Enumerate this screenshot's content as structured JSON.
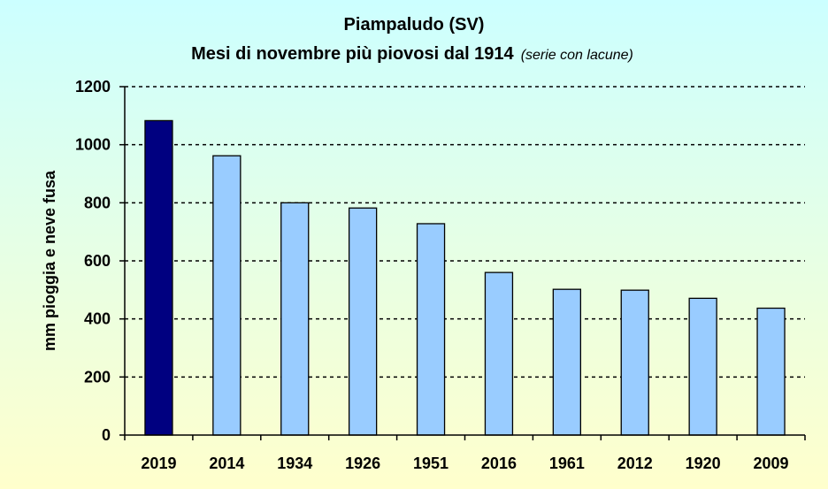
{
  "chart_data": {
    "type": "bar",
    "title": "Piampaludo (SV)",
    "subtitle": "Mesi di novembre più piovosi dal 1914",
    "subtitle_note": "(serie con lacune)",
    "xlabel": "",
    "ylabel": "mm pioggia e neve fusa",
    "ylim": [
      0,
      1200
    ],
    "yticks": [
      0,
      200,
      400,
      600,
      800,
      1000,
      1200
    ],
    "grid": true,
    "legend": "none",
    "categories": [
      "2019",
      "2014",
      "1934",
      "1926",
      "1951",
      "2016",
      "1961",
      "2012",
      "1920",
      "2009"
    ],
    "values": [
      1083,
      962,
      800,
      782,
      728,
      560,
      502,
      499,
      471,
      437
    ],
    "colors": {
      "highlight": "#000080",
      "bar": "#99CCFF",
      "background_top": "#CCFFFF",
      "background_bottom": "#FFFFCC"
    }
  }
}
